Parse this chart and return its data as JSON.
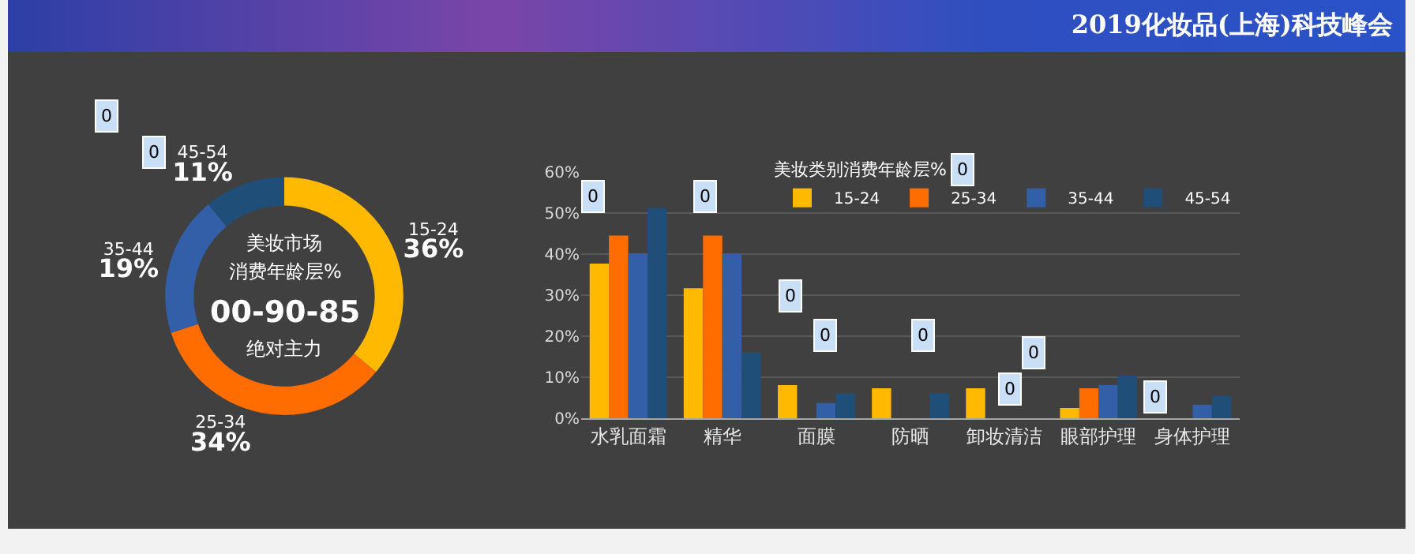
{
  "chart_data": [
    {
      "type": "donut",
      "categories": [
        "15-24",
        "25-34",
        "35-44",
        "45-54"
      ],
      "values": [
        36,
        34,
        19,
        11
      ],
      "colors": [
        "#ffb900",
        "#ff6d00",
        "#335ea8",
        "#1f4e79"
      ],
      "value_labels": [
        "36%",
        "34%",
        "19%",
        "11%"
      ],
      "annotations": [
        "2019化妆品(上海)科技峰会",
        "美妆市场",
        "消费年龄层%",
        "00-90-85",
        "绝对主力",
        "0",
        "0"
      ],
      "legend": false
    },
    {
      "type": "bar",
      "legend_title": "美妆类别消费年龄层%",
      "categories": [
        "水乳面霜",
        "精华",
        "面膜",
        "防晒",
        "卸妆清洁",
        "眼部护理",
        "身体护理"
      ],
      "series": [
        {
          "name": "15-24",
          "color": "#ffb900",
          "values": [
            37.7,
            31.7,
            8.1,
            7.3,
            7.3,
            2.5,
            null
          ]
        },
        {
          "name": "25-34",
          "color": "#ff6d00",
          "values": [
            44.5,
            44.5,
            null,
            null,
            null,
            7.3,
            null
          ]
        },
        {
          "name": "35-44",
          "color": "#335ea8",
          "values": [
            40,
            40,
            3.7,
            null,
            null,
            8.1,
            3.3
          ]
        },
        {
          "name": "45-54",
          "color": "#1f4e79",
          "values": [
            51.2,
            16,
            6.1,
            6.1,
            null,
            10.4,
            5.5
          ]
        }
      ],
      "ylim": [
        0,
        60
      ],
      "yticks": [
        {
          "value": 0,
          "label": "0%"
        },
        {
          "value": 10,
          "label": "10%"
        },
        {
          "value": 20,
          "label": "20%"
        },
        {
          "value": 30,
          "label": "30%"
        },
        {
          "value": 40,
          "label": "40%"
        },
        {
          "value": 50,
          "label": "50%"
        },
        {
          "value": 60,
          "label": "60%"
        }
      ],
      "grid": "y",
      "legend": "top right",
      "annotations": [
        "0",
        "0",
        "0",
        "0",
        "0",
        "0",
        "0",
        "0",
        "0"
      ]
    }
  ]
}
